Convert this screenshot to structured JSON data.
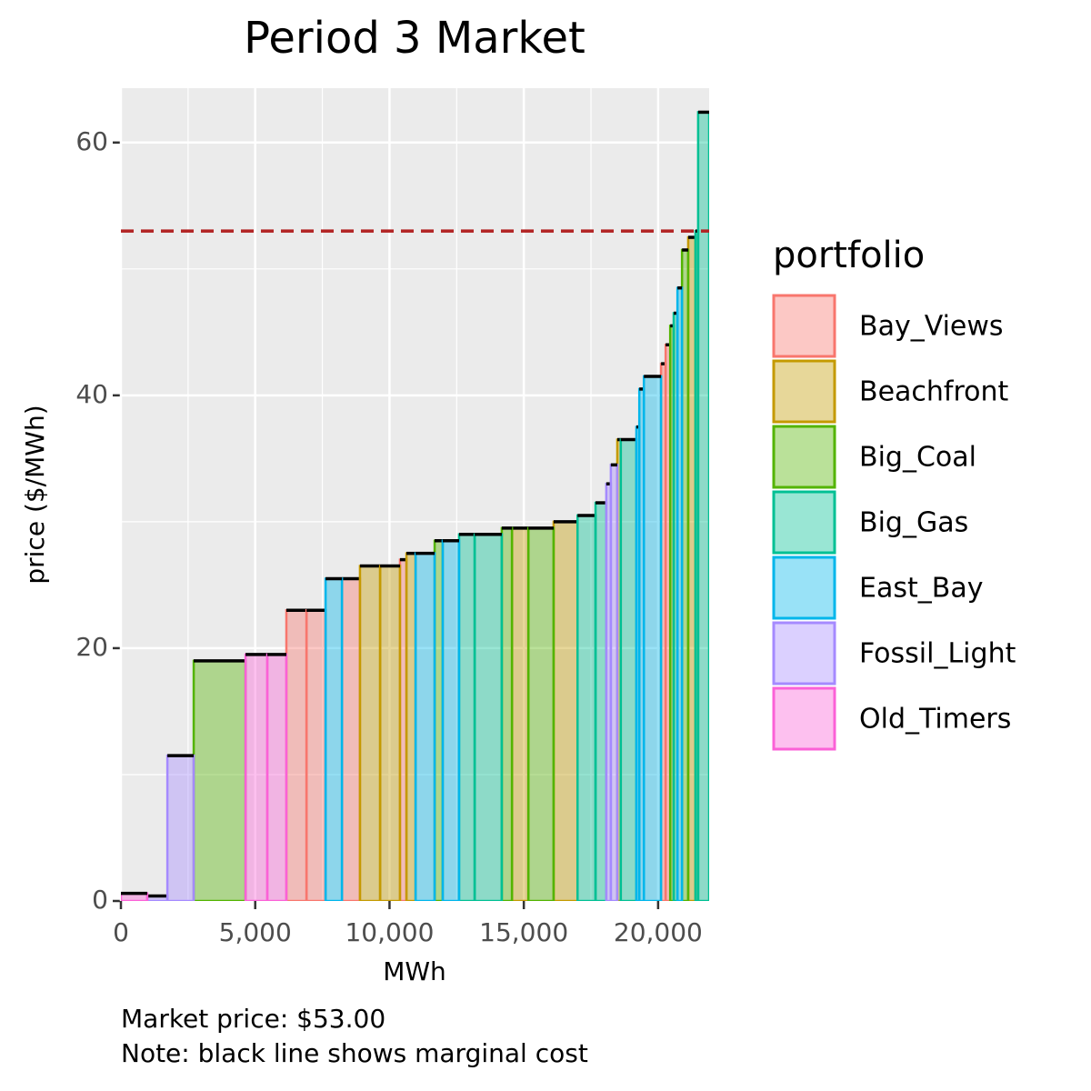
{
  "chart_data": {
    "type": "step-bar",
    "title": "Period 3 Market",
    "x_label": "MWh",
    "y_label": "price ($/MWh)",
    "legend_title": "portfolio",
    "caption": [
      "Market price: $53.00",
      "Note: black line shows marginal cost"
    ],
    "market_price": 53,
    "market_price_color": "#b22222",
    "xlim": [
      0,
      21900
    ],
    "ylim": [
      0,
      64.3
    ],
    "xticks": [
      0,
      {
        "value": 5000,
        "label": "5,000"
      },
      {
        "value": 10000,
        "label": "10,000"
      },
      {
        "value": 15000,
        "label": "15,000"
      },
      {
        "value": 20000,
        "label": "20,000"
      }
    ],
    "yticks": [
      0,
      20,
      40,
      60
    ],
    "grid": true,
    "series": [
      {
        "name": "Bay_Views",
        "color": "#F8766D",
        "segments": [
          [
            6160,
            6910,
            23
          ],
          [
            6910,
            7620,
            23
          ],
          [
            8230,
            8900,
            25.5
          ],
          [
            10390,
            10630,
            27
          ],
          [
            20110,
            20280,
            42.5
          ],
          [
            20280,
            20450,
            44
          ]
        ]
      },
      {
        "name": "Beachfront",
        "color": "#C49A00",
        "segments": [
          [
            8900,
            9650,
            26.5
          ],
          [
            9650,
            10390,
            26.5
          ],
          [
            10630,
            10970,
            27.5
          ],
          [
            14560,
            15170,
            29.5
          ],
          [
            16110,
            17000,
            30
          ],
          [
            18480,
            18610,
            36.5
          ],
          [
            21120,
            21390,
            52.5
          ]
        ]
      },
      {
        "name": "Big_Coal",
        "color": "#53B400",
        "segments": [
          [
            2710,
            4640,
            19
          ],
          [
            11680,
            11980,
            28.5
          ],
          [
            14180,
            14560,
            29.5
          ],
          [
            15170,
            16110,
            29.5
          ],
          [
            20450,
            20580,
            45.5
          ],
          [
            20890,
            21120,
            51.5
          ]
        ]
      },
      {
        "name": "Big_Gas",
        "color": "#00C094",
        "segments": [
          [
            12590,
            13170,
            29
          ],
          [
            13170,
            14180,
            29
          ],
          [
            17000,
            17670,
            30.5
          ],
          [
            17670,
            18070,
            31.5
          ],
          [
            18610,
            19190,
            36.5
          ],
          [
            20580,
            20720,
            46.5
          ],
          [
            21390,
            21490,
            53
          ],
          [
            21490,
            21900,
            62.4
          ]
        ]
      },
      {
        "name": "East_Bay",
        "color": "#00B6EB",
        "segments": [
          [
            7620,
            8230,
            25.5
          ],
          [
            10970,
            11680,
            27.5
          ],
          [
            11980,
            12590,
            28.5
          ],
          [
            19190,
            19300,
            37.5
          ],
          [
            19300,
            19470,
            40.5
          ],
          [
            19470,
            20110,
            41.5
          ],
          [
            20720,
            20890,
            48.5
          ]
        ]
      },
      {
        "name": "Fossil_Light",
        "color": "#A58AFF",
        "segments": [
          [
            980,
            1730,
            0.4
          ],
          [
            1730,
            2710,
            11.5
          ],
          [
            18070,
            18240,
            33
          ],
          [
            18240,
            18480,
            34.5
          ]
        ]
      },
      {
        "name": "Old_Timers",
        "color": "#FB61D7",
        "segments": [
          [
            0,
            980,
            0.6
          ],
          [
            4640,
            5450,
            19.5
          ],
          [
            5450,
            6160,
            19.5
          ]
        ]
      }
    ]
  }
}
